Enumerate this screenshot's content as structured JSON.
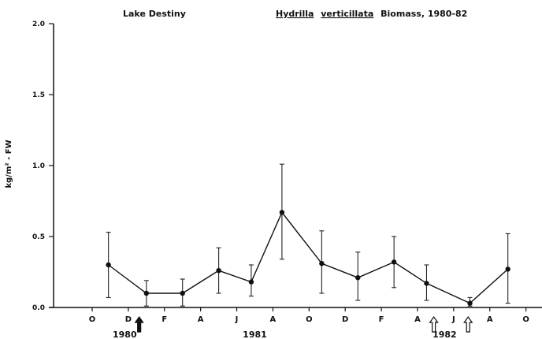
{
  "chart_data": {
    "type": "line",
    "title_left": "Lake Destiny",
    "title_species_genus": "Hydrilla",
    "title_species_epithet": "verticillata",
    "title_rest": "Biomass, 1980-82",
    "ylabel": "kg/m² - FW",
    "ylim": [
      0,
      2.0
    ],
    "yticks": [
      "0.0",
      "0.5",
      "1.0",
      "1.5",
      "2.0"
    ],
    "xlim": [
      0,
      24.8
    ],
    "month_ticks": [
      {
        "label": "O",
        "x": 0
      },
      {
        "label": "D",
        "x": 2
      },
      {
        "label": "F",
        "x": 4
      },
      {
        "label": "A",
        "x": 6
      },
      {
        "label": "J",
        "x": 8
      },
      {
        "label": "A",
        "x": 10
      },
      {
        "label": "O",
        "x": 12
      },
      {
        "label": "D",
        "x": 14
      },
      {
        "label": "F",
        "x": 16
      },
      {
        "label": "A",
        "x": 18
      },
      {
        "label": "J",
        "x": 20
      },
      {
        "label": "A",
        "x": 22
      },
      {
        "label": "O",
        "x": 24
      }
    ],
    "year_labels": [
      {
        "label": "1980",
        "x": 1.8
      },
      {
        "label": "1981",
        "x": 9.0
      },
      {
        "label": "1982",
        "x": 19.5
      }
    ],
    "arrows": [
      {
        "x": 2.6,
        "style": "filled"
      },
      {
        "x": 18.9,
        "style": "open"
      },
      {
        "x": 20.8,
        "style": "open"
      }
    ],
    "series": [
      {
        "points": [
          {
            "x": 0.9,
            "y": 0.3,
            "lo": 0.07,
            "hi": 0.53
          },
          {
            "x": 3.0,
            "y": 0.1,
            "lo": 0.01,
            "hi": 0.19
          },
          {
            "x": 5.0,
            "y": 0.1,
            "lo": 0.01,
            "hi": 0.2
          },
          {
            "x": 7.0,
            "y": 0.26,
            "lo": 0.1,
            "hi": 0.42
          },
          {
            "x": 8.8,
            "y": 0.18,
            "lo": 0.08,
            "hi": 0.3
          },
          {
            "x": 10.5,
            "y": 0.67,
            "lo": 0.34,
            "hi": 1.01
          },
          {
            "x": 12.7,
            "y": 0.31,
            "lo": 0.1,
            "hi": 0.54
          },
          {
            "x": 14.7,
            "y": 0.21,
            "lo": 0.05,
            "hi": 0.39
          },
          {
            "x": 16.7,
            "y": 0.32,
            "lo": 0.14,
            "hi": 0.5
          },
          {
            "x": 18.5,
            "y": 0.17,
            "lo": 0.05,
            "hi": 0.3
          },
          {
            "x": 20.9,
            "y": 0.03,
            "lo": 0.01,
            "hi": 0.07
          },
          {
            "x": 23.0,
            "y": 0.27,
            "lo": 0.03,
            "hi": 0.52
          }
        ]
      }
    ]
  }
}
